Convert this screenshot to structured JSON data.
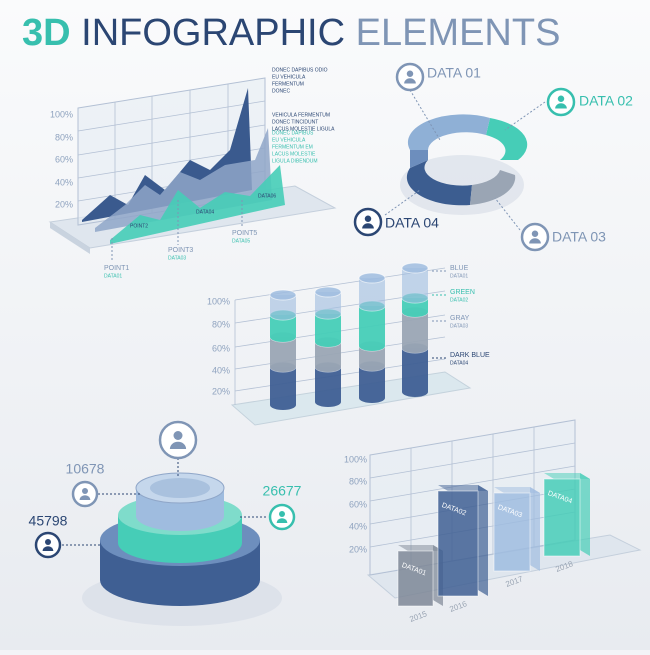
{
  "header": {
    "accent": "3D",
    "main": "INFOGRAPHIC",
    "end": "ELEMENTS"
  },
  "area_chart": {
    "yticks": [
      "100%",
      "80%",
      "60%",
      "40%",
      "20%"
    ],
    "notes": [
      [
        "DONEC DAPIBUS ODIO",
        "EU VEHICULA",
        "FERMENTUM",
        "DONEC"
      ],
      [
        "VEHICULA FERMENTUM",
        "DONEC TINCIDUNT",
        "LACUS MOLESTIE LIGULA"
      ],
      [
        "DONEC DAPIBUS",
        "EU VEHICULA",
        "FERMENTUM EM",
        "LACUS MOLESTIE",
        "LIGULA DIBENDUM"
      ]
    ],
    "points": [
      {
        "label": "POINT1",
        "sub": "DATA01"
      },
      {
        "label": "POINT3",
        "sub": "DATA03"
      },
      {
        "label": "POINT5",
        "sub": "DATA05"
      }
    ],
    "inner": [
      "POINT2",
      "DATA04",
      "DATA06"
    ]
  },
  "ring": {
    "labels": [
      "DATA 01",
      "DATA 02",
      "DATA 03",
      "DATA 04"
    ]
  },
  "cylinders": {
    "yticks": [
      "100%",
      "80%",
      "60%",
      "40%",
      "20%"
    ],
    "legend": [
      {
        "name": "BLUE",
        "sub": "DATA01"
      },
      {
        "name": "GREEN",
        "sub": "DATA02"
      },
      {
        "name": "GRAY",
        "sub": "DATA03"
      },
      {
        "name": "DARK BLUE",
        "sub": "DATA04"
      }
    ]
  },
  "pyramid": {
    "values": [
      "10678",
      "26677",
      "45798"
    ]
  },
  "bars3d": {
    "yticks": [
      "100%",
      "80%",
      "60%",
      "40%",
      "20%"
    ],
    "bars": [
      {
        "label": "DATA01",
        "year": "2015"
      },
      {
        "label": "DATA02",
        "year": "2016"
      },
      {
        "label": "DATA03",
        "year": "2017"
      },
      {
        "label": "DATA04",
        "year": "2018"
      }
    ]
  }
}
